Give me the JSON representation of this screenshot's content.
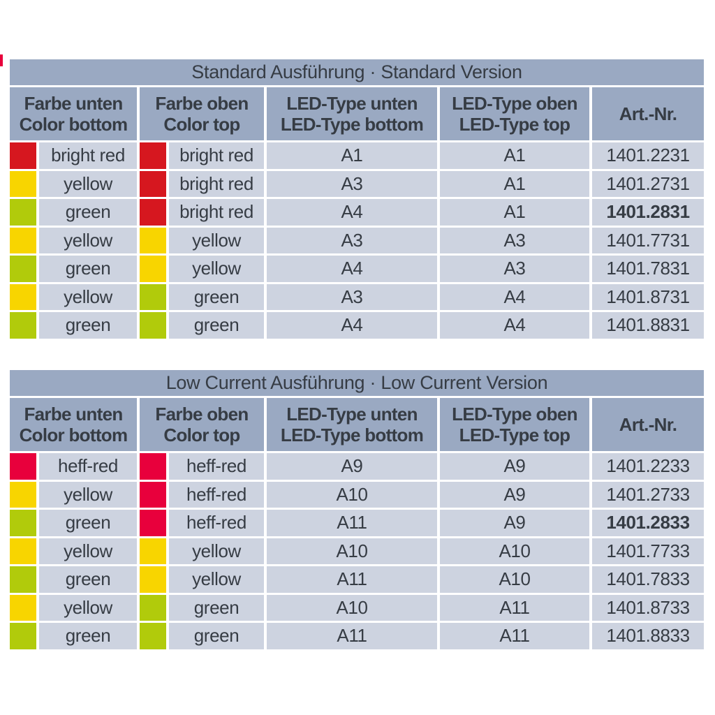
{
  "colors": {
    "band": "#9aa9c2",
    "cell": "#cdd3e0",
    "text": "#363c44",
    "bright_red": "#d6171f",
    "heff_red": "#e8003c",
    "yellow": "#f8d500",
    "green": "#b1cb0b",
    "edge_mark": "#e8003c",
    "page_background": "#ffffff"
  },
  "tables": [
    {
      "title": "Standard Ausführung · Standard Version",
      "headers": [
        {
          "line1": "Farbe unten",
          "line2": "Color bottom"
        },
        {
          "line1": "Farbe oben",
          "line2": "Color top"
        },
        {
          "line1": "LED-Type unten",
          "line2": "LED-Type bottom"
        },
        {
          "line1": "LED-Type oben",
          "line2": "LED-Type top"
        },
        {
          "line1": "Art.-Nr.",
          "line2": ""
        }
      ],
      "rows": [
        {
          "color_bottom": {
            "swatch": "bright_red",
            "label": "bright red"
          },
          "color_top": {
            "swatch": "bright_red",
            "label": "bright red"
          },
          "led_bottom": "A1",
          "led_top": "A1",
          "art_nr": "1401.2231",
          "art_nr_bold": false
        },
        {
          "color_bottom": {
            "swatch": "yellow",
            "label": "yellow"
          },
          "color_top": {
            "swatch": "bright_red",
            "label": "bright red"
          },
          "led_bottom": "A3",
          "led_top": "A1",
          "art_nr": "1401.2731",
          "art_nr_bold": false
        },
        {
          "color_bottom": {
            "swatch": "green",
            "label": "green"
          },
          "color_top": {
            "swatch": "bright_red",
            "label": "bright red"
          },
          "led_bottom": "A4",
          "led_top": "A1",
          "art_nr": "1401.2831",
          "art_nr_bold": true
        },
        {
          "color_bottom": {
            "swatch": "yellow",
            "label": "yellow"
          },
          "color_top": {
            "swatch": "yellow",
            "label": "yellow"
          },
          "led_bottom": "A3",
          "led_top": "A3",
          "art_nr": "1401.7731",
          "art_nr_bold": false
        },
        {
          "color_bottom": {
            "swatch": "green",
            "label": "green"
          },
          "color_top": {
            "swatch": "yellow",
            "label": "yellow"
          },
          "led_bottom": "A4",
          "led_top": "A3",
          "art_nr": "1401.7831",
          "art_nr_bold": false
        },
        {
          "color_bottom": {
            "swatch": "yellow",
            "label": "yellow"
          },
          "color_top": {
            "swatch": "green",
            "label": "green"
          },
          "led_bottom": "A3",
          "led_top": "A4",
          "art_nr": "1401.8731",
          "art_nr_bold": false
        },
        {
          "color_bottom": {
            "swatch": "green",
            "label": "green"
          },
          "color_top": {
            "swatch": "green",
            "label": "green"
          },
          "led_bottom": "A4",
          "led_top": "A4",
          "art_nr": "1401.8831",
          "art_nr_bold": false
        }
      ]
    },
    {
      "title": "Low Current Ausführung · Low Current Version",
      "headers": [
        {
          "line1": "Farbe unten",
          "line2": "Color bottom"
        },
        {
          "line1": "Farbe oben",
          "line2": "Color top"
        },
        {
          "line1": "LED-Type unten",
          "line2": "LED-Type bottom"
        },
        {
          "line1": "LED-Type oben",
          "line2": "LED-Type top"
        },
        {
          "line1": "Art.-Nr.",
          "line2": ""
        }
      ],
      "rows": [
        {
          "color_bottom": {
            "swatch": "heff_red",
            "label": "heff-red"
          },
          "color_top": {
            "swatch": "heff_red",
            "label": "heff-red"
          },
          "led_bottom": "A9",
          "led_top": "A9",
          "art_nr": "1401.2233",
          "art_nr_bold": false
        },
        {
          "color_bottom": {
            "swatch": "yellow",
            "label": "yellow"
          },
          "color_top": {
            "swatch": "heff_red",
            "label": "heff-red"
          },
          "led_bottom": "A10",
          "led_top": "A9",
          "art_nr": "1401.2733",
          "art_nr_bold": false
        },
        {
          "color_bottom": {
            "swatch": "green",
            "label": "green"
          },
          "color_top": {
            "swatch": "heff_red",
            "label": "heff-red"
          },
          "led_bottom": "A11",
          "led_top": "A9",
          "art_nr": "1401.2833",
          "art_nr_bold": true
        },
        {
          "color_bottom": {
            "swatch": "yellow",
            "label": "yellow"
          },
          "color_top": {
            "swatch": "yellow",
            "label": "yellow"
          },
          "led_bottom": "A10",
          "led_top": "A10",
          "art_nr": "1401.7733",
          "art_nr_bold": false
        },
        {
          "color_bottom": {
            "swatch": "green",
            "label": "green"
          },
          "color_top": {
            "swatch": "yellow",
            "label": "yellow"
          },
          "led_bottom": "A11",
          "led_top": "A10",
          "art_nr": "1401.7833",
          "art_nr_bold": false
        },
        {
          "color_bottom": {
            "swatch": "yellow",
            "label": "yellow"
          },
          "color_top": {
            "swatch": "green",
            "label": "green"
          },
          "led_bottom": "A10",
          "led_top": "A11",
          "art_nr": "1401.8733",
          "art_nr_bold": false
        },
        {
          "color_bottom": {
            "swatch": "green",
            "label": "green"
          },
          "color_top": {
            "swatch": "green",
            "label": "green"
          },
          "led_bottom": "A11",
          "led_top": "A11",
          "art_nr": "1401.8833",
          "art_nr_bold": false
        }
      ]
    }
  ]
}
